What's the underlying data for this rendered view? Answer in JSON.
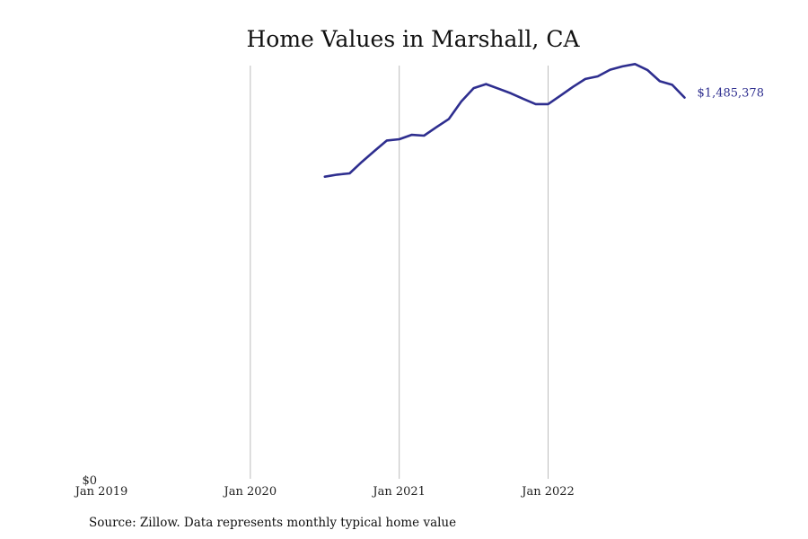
{
  "chart_data": {
    "type": "line",
    "title": "Home Values in Marshall, CA",
    "xlabel": "",
    "ylabel": "",
    "x_ticks": [
      "Jan 2019",
      "Jan 2020",
      "Jan 2021",
      "Jan 2022"
    ],
    "y_ticks": [
      {
        "label": "$0",
        "value": 0
      }
    ],
    "xlim": [
      "2019-01",
      "2023-03"
    ],
    "ylim": [
      0,
      1610000
    ],
    "grid": "vertical",
    "series": [
      {
        "color": "#2e2e8f",
        "end_label": "$1,485,378",
        "x": [
          "2020-07",
          "2020-08",
          "2020-09",
          "2020-10",
          "2020-11",
          "2020-12",
          "2021-01",
          "2021-02",
          "2021-03",
          "2021-04",
          "2021-05",
          "2021-06",
          "2021-07",
          "2021-08",
          "2021-09",
          "2021-10",
          "2021-11",
          "2021-12",
          "2022-01",
          "2022-02",
          "2022-03",
          "2022-04",
          "2022-05",
          "2022-06",
          "2022-07",
          "2022-08",
          "2022-09",
          "2022-10",
          "2022-11",
          "2022-12"
        ],
        "values": [
          1177000,
          1185000,
          1190000,
          1235000,
          1277000,
          1318000,
          1323000,
          1340000,
          1337000,
          1370000,
          1402000,
          1470000,
          1522000,
          1538000,
          1520000,
          1502000,
          1480000,
          1460000,
          1460000,
          1493000,
          1527000,
          1558000,
          1568000,
          1594000,
          1607000,
          1616000,
          1593000,
          1549000,
          1535000,
          1485378
        ]
      }
    ]
  },
  "source_note": "Source: Zillow. Data represents monthly typical home value"
}
